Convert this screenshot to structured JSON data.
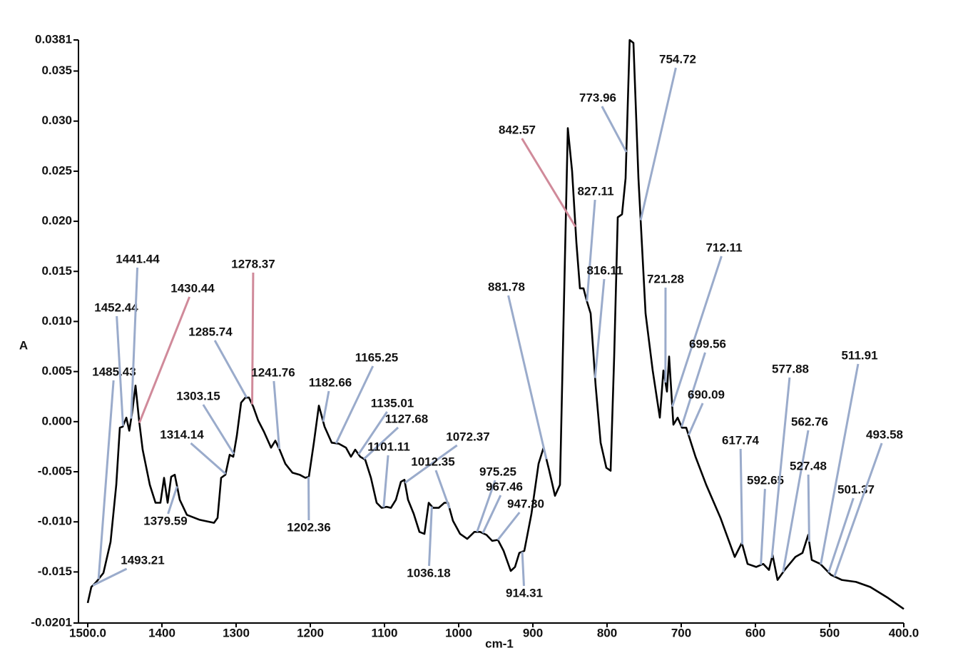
{
  "chart_data": {
    "type": "line",
    "xlabel": "cm-1",
    "ylabel": "A",
    "xlim": [
      1500,
      400
    ],
    "ylim": [
      -0.0201,
      0.0381
    ],
    "xticks": [
      {
        "value": 1500,
        "label": "1500.0"
      },
      1400,
      1300,
      1200,
      1100,
      1000,
      900,
      800,
      700,
      600,
      500,
      {
        "value": 400,
        "label": "400.0"
      }
    ],
    "yticks": [
      -0.0201,
      -0.015,
      {
        "value": -0.01,
        "label": "-0.010"
      },
      -0.005,
      {
        "value": 0,
        "label": "0.000"
      },
      0.005,
      {
        "value": 0.01,
        "label": "0.010"
      },
      0.015,
      {
        "value": 0.02,
        "label": "0.020"
      },
      0.025,
      {
        "value": 0.03,
        "label": "0.030"
      },
      0.035,
      0.0381
    ],
    "series": [
      {
        "color": "#000000",
        "x": [
          1500,
          1495.2,
          1488.5,
          1478.8,
          1469.2,
          1461.5,
          1456.7,
          1452.9,
          1448,
          1444,
          1440.4,
          1435.6,
          1430.8,
          1426,
          1416.3,
          1408.7,
          1402,
          1397.1,
          1392.3,
          1387.5,
          1382.7,
          1376,
          1366.3,
          1349,
          1329.8,
          1325,
          1320.2,
          1314.4,
          1308.7,
          1303.8,
          1299,
          1293.3,
          1287.5,
          1282.7,
          1276.9,
          1270.2,
          1262.5,
          1252.9,
          1247.1,
          1241.3,
          1233.7,
          1224,
          1214.4,
          1206.7,
          1201.9,
          1195.2,
          1188.5,
          1180.8,
          1171.2,
          1161.5,
          1151.9,
          1145.2,
          1139.4,
          1132.7,
          1126,
          1118.3,
          1110.6,
          1103.8,
          1097.1,
          1091.3,
          1084.6,
          1077.9,
          1073.1,
          1068.3,
          1060.6,
          1052.9,
          1046.2,
          1040.4,
          1034.6,
          1026.9,
          1019.2,
          1014.4,
          1007.7,
          998.1,
          988.5,
          978.8,
          971.2,
          962.5,
          954.8,
          947.1,
          939.4,
          929.8,
          924,
          918.3,
          911.5,
          901.9,
          892.3,
          885.6,
          877.9,
          870.2,
          863.5,
          858.7,
          852.9,
          847.1,
          841.3,
          836.5,
          831.7,
          827.9,
          822.1,
          815.4,
          808.7,
          801,
          795.2,
          790.4,
          785.6,
          779.8,
          775,
          769.5,
          764.4,
          757.7,
          748.1,
          738.5,
          728.8,
          724,
          719.2,
          716.3,
          710.6,
          704.8,
          699,
          693.3,
          680.8,
          666.3,
          647.1,
          627.9,
          618.3,
          610.6,
          599,
          589.4,
          581.7,
          576.9,
          570.2,
          560.6,
          546.2,
          536.5,
          528.8,
          524,
          512.5,
          498.1,
          483.7,
          464.4,
          445.2,
          421.2,
          400
        ],
        "values": [
          -0.0181,
          -0.0165,
          -0.016,
          -0.0151,
          -0.012,
          -0.0063,
          -0.0006,
          -0.0005,
          0.0004,
          -0.0009,
          0.0008,
          0.0036,
          0.0001,
          -0.0028,
          -0.0063,
          -0.0081,
          -0.0081,
          -0.0056,
          -0.0081,
          -0.0055,
          -0.0053,
          -0.0078,
          -0.0093,
          -0.0098,
          -0.0101,
          -0.0096,
          -0.0056,
          -0.0053,
          -0.0033,
          -0.0035,
          -0.0014,
          0.0019,
          0.0024,
          0.0024,
          0.0015,
          0.0001,
          -0.001,
          -0.0026,
          -0.0019,
          -0.0028,
          -0.0042,
          -0.0051,
          -0.0053,
          -0.0056,
          -0.0055,
          -0.0021,
          0.0016,
          -0.0005,
          -0.0021,
          -0.0022,
          -0.0026,
          -0.0035,
          -0.0028,
          -0.0035,
          -0.0038,
          -0.0056,
          -0.0081,
          -0.0086,
          -0.0085,
          -0.0086,
          -0.0078,
          -0.006,
          -0.0058,
          -0.0078,
          -0.0092,
          -0.011,
          -0.0112,
          -0.0081,
          -0.0086,
          -0.0086,
          -0.0081,
          -0.0081,
          -0.0099,
          -0.0112,
          -0.0117,
          -0.011,
          -0.011,
          -0.0113,
          -0.0119,
          -0.0118,
          -0.0129,
          -0.0149,
          -0.0145,
          -0.0131,
          -0.0129,
          -0.0092,
          -0.0042,
          -0.0026,
          -0.0049,
          -0.0074,
          -0.0063,
          0.01,
          0.0293,
          0.025,
          0.0179,
          0.0133,
          0.0133,
          0.0122,
          0.0108,
          0.0036,
          -0.0021,
          -0.0046,
          -0.0049,
          0.0065,
          0.0204,
          0.0207,
          0.0243,
          0.0381,
          0.0378,
          0.0243,
          0.0108,
          0.0051,
          0.0004,
          0.0051,
          0.003,
          0.0065,
          -0.0003,
          0.0004,
          -0.0006,
          -0.0006,
          -0.0035,
          -0.0063,
          -0.0096,
          -0.0135,
          -0.0121,
          -0.0142,
          -0.0145,
          -0.0142,
          -0.0148,
          -0.0133,
          -0.0158,
          -0.0148,
          -0.0135,
          -0.0131,
          -0.0113,
          -0.0138,
          -0.0142,
          -0.0153,
          -0.0158,
          -0.016,
          -0.0165,
          -0.0176,
          -0.0187
        ]
      }
    ],
    "peaks": [
      {
        "x": 754.72,
        "color": "#9aabcb"
      },
      {
        "x": 773.96,
        "color": "#9aabcb"
      },
      {
        "x": 842.57,
        "color": "#d08a9a"
      },
      {
        "x": 827.11,
        "color": "#9aabcb"
      },
      {
        "x": 816.11,
        "color": "#9aabcb"
      },
      {
        "x": 881.78,
        "color": "#9aabcb"
      },
      {
        "x": 721.28,
        "color": "#9aabcb"
      },
      {
        "x": 712.11,
        "color": "#9aabcb"
      },
      {
        "x": 699.56,
        "color": "#9aabcb"
      },
      {
        "x": 690.09,
        "color": "#9aabcb"
      },
      {
        "x": 617.74,
        "color": "#9aabcb"
      },
      {
        "x": 592.65,
        "color": "#9aabcb"
      },
      {
        "x": 577.88,
        "color": "#9aabcb"
      },
      {
        "x": 562.76,
        "color": "#9aabcb"
      },
      {
        "x": 527.48,
        "color": "#9aabcb"
      },
      {
        "x": 511.91,
        "color": "#9aabcb"
      },
      {
        "x": 501.37,
        "color": "#9aabcb"
      },
      {
        "x": 493.58,
        "color": "#9aabcb"
      },
      {
        "x": 1493.21,
        "color": "#9aabcb"
      },
      {
        "x": 1485.43,
        "color": "#9aabcb"
      },
      {
        "x": 1452.44,
        "color": "#9aabcb"
      },
      {
        "x": 1441.44,
        "color": "#9aabcb"
      },
      {
        "x": 1430.44,
        "color": "#d08a9a"
      },
      {
        "x": 1285.74,
        "color": "#9aabcb"
      },
      {
        "x": 1278.37,
        "color": "#d08a9a"
      },
      {
        "x": 1241.76,
        "color": "#9aabcb"
      },
      {
        "x": 1303.15,
        "color": "#9aabcb"
      },
      {
        "x": 1314.14,
        "color": "#9aabcb"
      },
      {
        "x": 1379.59,
        "color": "#9aabcb"
      },
      {
        "x": 1202.36,
        "color": "#9aabcb"
      },
      {
        "x": 1182.66,
        "color": "#9aabcb"
      },
      {
        "x": 1165.25,
        "color": "#9aabcb"
      },
      {
        "x": 1135.01,
        "color": "#9aabcb"
      },
      {
        "x": 1127.68,
        "color": "#9aabcb"
      },
      {
        "x": 1101.11,
        "color": "#9aabcb"
      },
      {
        "x": 1072.37,
        "color": "#9aabcb"
      },
      {
        "x": 1012.35,
        "color": "#9aabcb"
      },
      {
        "x": 975.25,
        "color": "#9aabcb"
      },
      {
        "x": 967.46,
        "color": "#9aabcb"
      },
      {
        "x": {
          "value": 947.3,
          "label": "947.30"
        },
        "color": "#9aabcb"
      },
      {
        "x": 1036.18,
        "color": "#9aabcb"
      },
      {
        "x": 914.31,
        "color": "#9aabcb"
      }
    ]
  }
}
